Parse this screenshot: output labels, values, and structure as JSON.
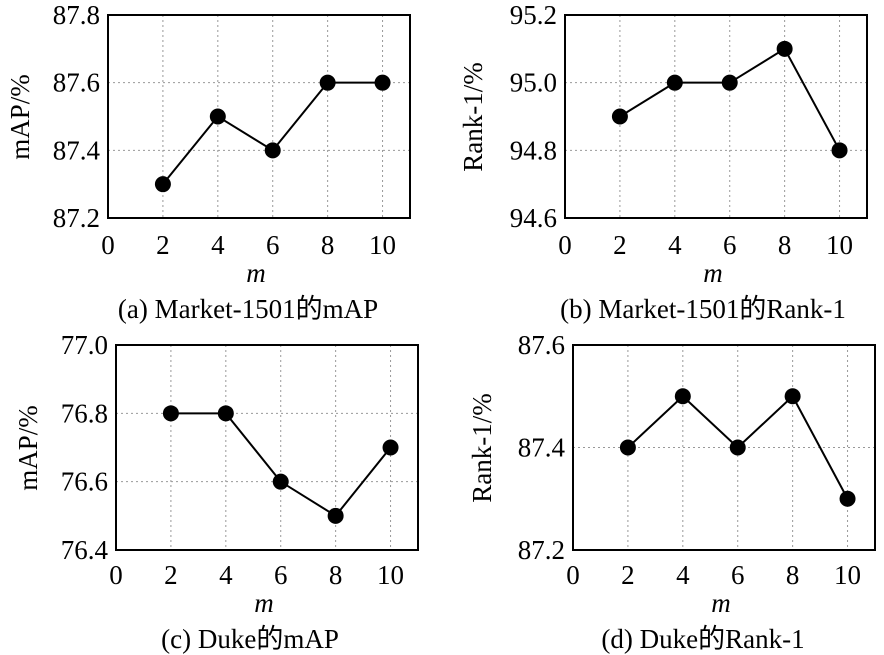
{
  "chart_data": [
    {
      "type": "line",
      "caption": "(a) Market-1501的mAP",
      "xlabel": "m",
      "ylabel": "mAP/%",
      "xlim": [
        0,
        11
      ],
      "ylim": [
        87.2,
        87.8
      ],
      "xticks": [
        0,
        2,
        4,
        6,
        8,
        10
      ],
      "yticks": [
        "87.2",
        "87.4",
        "87.6",
        "87.8"
      ],
      "grid": true,
      "x": [
        2,
        4,
        6,
        8,
        10
      ],
      "values": [
        87.3,
        87.5,
        87.4,
        87.6,
        87.6
      ]
    },
    {
      "type": "line",
      "caption": "(b) Market-1501的Rank-1",
      "xlabel": "m",
      "ylabel": "Rank-1/%",
      "xlim": [
        0,
        11
      ],
      "ylim": [
        94.6,
        95.2
      ],
      "xticks": [
        0,
        2,
        4,
        6,
        8,
        10
      ],
      "yticks": [
        "94.6",
        "94.8",
        "95.0",
        "95.2"
      ],
      "grid": true,
      "x": [
        2,
        4,
        6,
        8,
        10
      ],
      "values": [
        94.9,
        95.0,
        95.0,
        95.1,
        94.8
      ]
    },
    {
      "type": "line",
      "caption": "(c) Duke的mAP",
      "xlabel": "m",
      "ylabel": "mAP/%",
      "xlim": [
        0,
        11
      ],
      "ylim": [
        76.4,
        77.0
      ],
      "xticks": [
        0,
        2,
        4,
        6,
        8,
        10
      ],
      "yticks": [
        "76.4",
        "76.6",
        "76.8",
        "77.0"
      ],
      "grid": true,
      "x": [
        2,
        4,
        6,
        8,
        10
      ],
      "values": [
        76.8,
        76.8,
        76.6,
        76.5,
        76.7
      ]
    },
    {
      "type": "line",
      "caption": "(d) Duke的Rank-1",
      "xlabel": "m",
      "ylabel": "Rank-1/%",
      "xlim": [
        0,
        11
      ],
      "ylim": [
        87.2,
        87.6
      ],
      "xticks": [
        0,
        2,
        4,
        6,
        8,
        10
      ],
      "yticks": [
        "87.2",
        "87.4",
        "87.6"
      ],
      "grid": true,
      "x": [
        2,
        4,
        6,
        8,
        10
      ],
      "values": [
        87.4,
        87.5,
        87.4,
        87.5,
        87.3
      ]
    }
  ]
}
